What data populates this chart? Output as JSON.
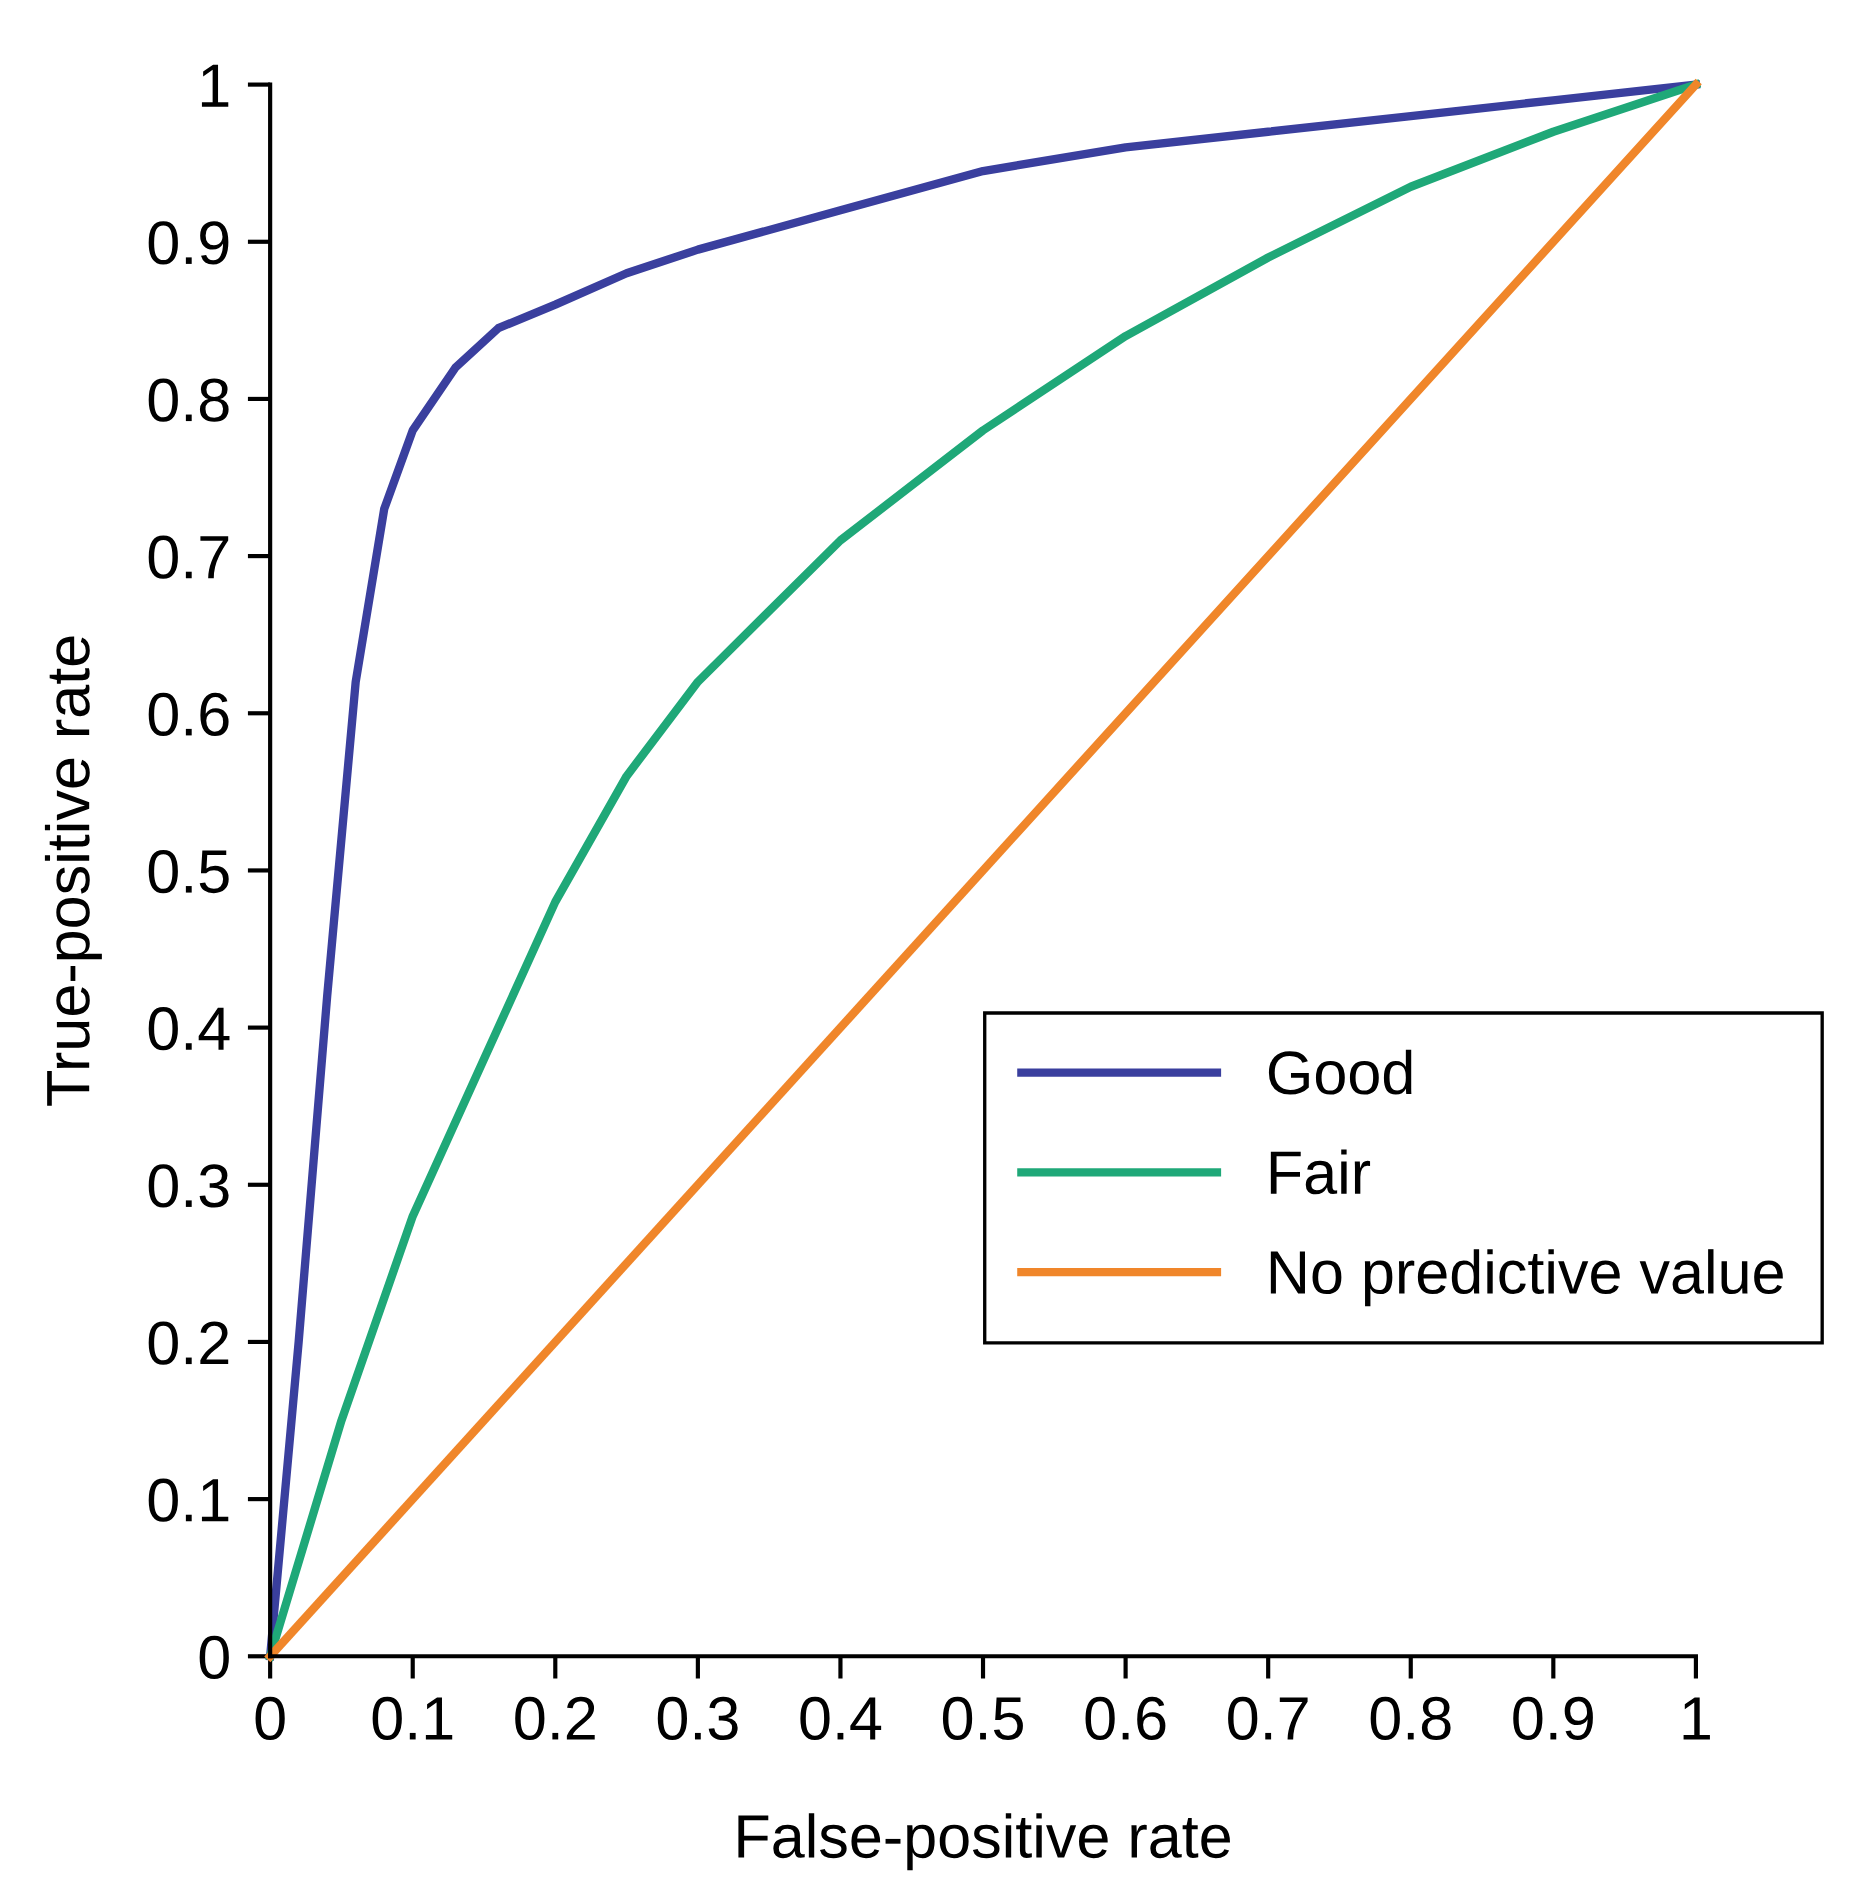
{
  "chart_data": {
    "type": "line",
    "xlabel": "False-positive rate",
    "ylabel": "True-positive rate",
    "xlim": [
      0,
      1
    ],
    "ylim": [
      0,
      1
    ],
    "xticks": [
      0,
      0.1,
      0.2,
      0.3,
      0.4,
      0.5,
      0.6,
      0.7,
      0.8,
      0.9,
      1
    ],
    "yticks": [
      0,
      0.1,
      0.2,
      0.3,
      0.4,
      0.5,
      0.6,
      0.7,
      0.8,
      0.9,
      1
    ],
    "grid": false,
    "legend": "bottom right",
    "marker": "none",
    "line_style": "solid",
    "series": [
      {
        "name": "Good",
        "color": "#3a3f9e",
        "x": [
          0,
          0.02,
          0.04,
          0.06,
          0.08,
          0.1,
          0.13,
          0.16,
          0.2,
          0.25,
          0.3,
          0.4,
          0.5,
          0.6,
          0.7,
          0.8,
          0.9,
          1
        ],
        "values": [
          0,
          0.2,
          0.42,
          0.62,
          0.73,
          0.78,
          0.82,
          0.845,
          0.86,
          0.88,
          0.895,
          0.92,
          0.945,
          0.96,
          0.97,
          0.98,
          0.99,
          1
        ]
      },
      {
        "name": "Fair",
        "color": "#1fa878",
        "x": [
          0,
          0.05,
          0.1,
          0.15,
          0.2,
          0.25,
          0.3,
          0.4,
          0.5,
          0.6,
          0.7,
          0.8,
          0.9,
          1
        ],
        "values": [
          0,
          0.15,
          0.28,
          0.38,
          0.48,
          0.56,
          0.62,
          0.71,
          0.78,
          0.84,
          0.89,
          0.935,
          0.97,
          1
        ]
      },
      {
        "name": "No predictive value",
        "color": "#f0862a",
        "x": [
          0,
          1
        ],
        "values": [
          0,
          1
        ]
      }
    ]
  }
}
